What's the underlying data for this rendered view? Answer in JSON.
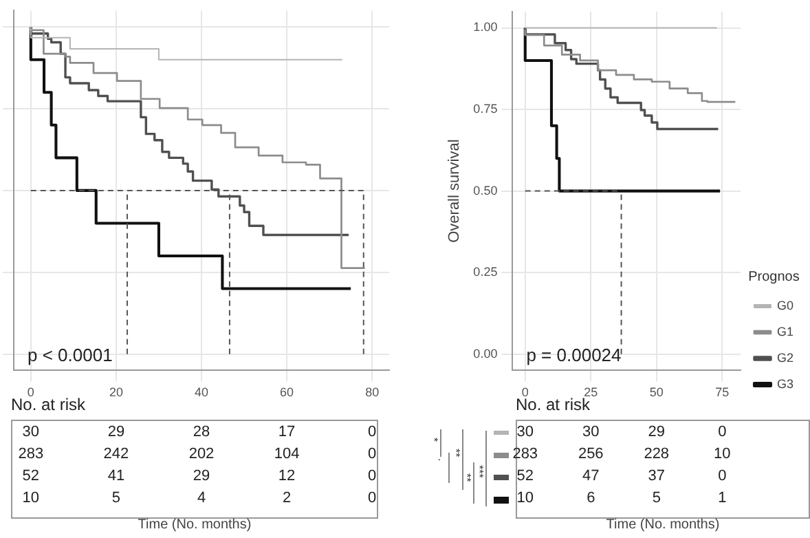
{
  "chart_data": [
    {
      "type": "step",
      "xlabel": "Time (No. months)",
      "xlim": [
        -4,
        84
      ],
      "xticks": [
        0,
        20,
        40,
        60,
        80
      ],
      "ylim": [
        -0.05,
        1.05
      ],
      "yticks": [
        {
          "value": 0,
          "label": null
        },
        {
          "value": 0.25,
          "label": null
        },
        {
          "value": 0.5,
          "label": null
        },
        {
          "value": 0.75,
          "label": null
        },
        {
          "value": 1,
          "label": null
        }
      ],
      "tick_labels": "x",
      "grid": true,
      "legend": false,
      "line_style": "solid",
      "series": [
        {
          "color": "#b4b4b4",
          "x": [
            0,
            9.2,
            30,
            41,
            73
          ],
          "values": [
            1,
            0.967,
            0.933,
            0.9,
            0.9
          ]
        },
        {
          "color": "#8c8c8c",
          "x": [
            0,
            3,
            8.1,
            9.2,
            14.7,
            20.2,
            25.8,
            30.2,
            36.8,
            40.2,
            44.6,
            47.9,
            53.4,
            59,
            64.5,
            67.8,
            72.8,
            78,
            78.3
          ],
          "values": [
            1,
            0.99,
            0.918,
            0.909,
            0.89,
            0.859,
            0.835,
            0.78,
            0.752,
            0.717,
            0.7,
            0.676,
            0.632,
            0.607,
            0.586,
            0.579,
            0.537,
            0.263,
            0.263
          ]
        },
        {
          "color": "#505050",
          "x": [
            0,
            4,
            4.8,
            7,
            8.1,
            9.2,
            13.6,
            15.8,
            18,
            25.8,
            27,
            29,
            30.8,
            32.4,
            35.7,
            36.8,
            38,
            42.4,
            44,
            49,
            50,
            51.2,
            54.5,
            59,
            74.5
          ],
          "values": [
            1,
            0.98,
            0.964,
            0.953,
            0.918,
            0.846,
            0.828,
            0.807,
            0.789,
            0.773,
            0.724,
            0.673,
            0.654,
            0.618,
            0.6,
            0.582,
            0.558,
            0.53,
            0.503,
            0.482,
            0.454,
            0.434,
            0.392,
            0.364,
            0.364
          ]
        },
        {
          "color": "#111111",
          "x": [
            0,
            3.1,
            4.8,
            5.9,
            10.8,
            15.3,
            30,
            44.9,
            51.2,
            75
          ],
          "values": [
            1,
            0.9,
            0.8,
            0.7,
            0.6,
            0.5,
            0.4,
            0.3,
            0.2,
            0.2
          ]
        }
      ],
      "ref_lines": [
        {
          "axis": "y",
          "value": 0.5,
          "line_style": "dashed"
        },
        {
          "axis": "x",
          "value": 22.6,
          "line_style": "dashed"
        },
        {
          "axis": "x",
          "value": 46.6,
          "line_style": "dashed"
        },
        {
          "axis": "x",
          "value": 78,
          "line_style": "dashed"
        }
      ],
      "annotations": [
        "p < 0.0001",
        "No. at risk",
        "30",
        "29",
        "28",
        "17",
        "0",
        "283",
        "242",
        "202",
        "104",
        "0",
        "52",
        "41",
        "29",
        "12",
        "0",
        "10",
        "5",
        "4",
        "2",
        "0"
      ]
    },
    {
      "type": "step",
      "xlabel": "Time (No. months)",
      "ylabel": "Overall survival",
      "legend_title": "Prognos",
      "xlim": [
        -4.8,
        82
      ],
      "xticks": [
        0,
        25,
        50,
        75
      ],
      "ylim": [
        -0.05,
        1.05
      ],
      "yticks": [
        {
          "value": 0,
          "label": "0.00"
        },
        {
          "value": 0.25,
          "label": "0.25"
        },
        {
          "value": 0.5,
          "label": "0.50"
        },
        {
          "value": 0.75,
          "label": "0.75"
        },
        {
          "value": 1,
          "label": "1.00"
        }
      ],
      "grid": true,
      "legend": "bottom right",
      "line_style": "solid",
      "series": [
        {
          "name": "G0",
          "color": "#b4b4b4",
          "x": [
            0,
            73
          ],
          "values": [
            1,
            1
          ]
        },
        {
          "name": "G1",
          "color": "#8c8c8c",
          "x": [
            0,
            7.2,
            14,
            20.9,
            27.7,
            34.6,
            41.4,
            48.2,
            55,
            61.9,
            67.3,
            69.4,
            80
          ],
          "values": [
            0.995,
            0.978,
            0.946,
            0.918,
            0.9,
            0.87,
            0.856,
            0.842,
            0.835,
            0.814,
            0.8,
            0.776,
            0.773
          ]
        },
        {
          "name": "G2",
          "color": "#505050",
          "x": [
            0,
            11.3,
            15.4,
            17.5,
            19.5,
            27.7,
            28.5,
            30.5,
            32.5,
            35.2,
            44.1,
            45.5,
            48.2,
            50.3,
            53,
            73.5
          ],
          "values": [
            1,
            0.98,
            0.953,
            0.932,
            0.904,
            0.89,
            0.87,
            0.842,
            0.814,
            0.787,
            0.77,
            0.748,
            0.731,
            0.71,
            0.69,
            0.69
          ]
        },
        {
          "name": "G3",
          "color": "#111111",
          "x": [
            0,
            10,
            12,
            13,
            36.6,
            74.2
          ],
          "values": [
            1,
            0.9,
            0.7,
            0.6,
            0.5,
            0.5
          ]
        }
      ],
      "ref_lines": [
        {
          "axis": "y",
          "value": 0.5,
          "line_style": "dashed"
        },
        {
          "axis": "x",
          "value": 36.6,
          "line_style": "dashed"
        }
      ],
      "annotations": [
        "p = 0.00024",
        "No. at risk",
        "30",
        "30",
        "29",
        "0",
        "283",
        "256",
        "228",
        "10",
        "52",
        "47",
        "37",
        "0",
        "10",
        "6",
        "5",
        "1",
        "*",
        ".",
        "**",
        "**",
        "***"
      ]
    }
  ]
}
